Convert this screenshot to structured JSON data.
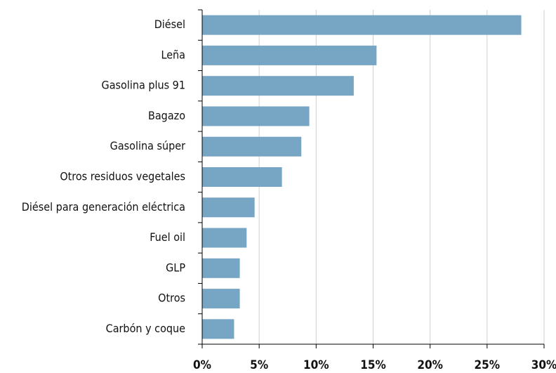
{
  "chart_data": {
    "type": "bar",
    "orientation": "horizontal",
    "categories": [
      "Diésel",
      "Leña",
      "Gasolina plus 91",
      "Bagazo",
      "Gasolina súper",
      "Otros residuos vegetales",
      "Diésel para generación eléctrica",
      "Fuel oil",
      "GLP",
      "Otros",
      "Carbón y coque"
    ],
    "values": [
      28,
      15.3,
      13.3,
      9.4,
      8.7,
      7.0,
      4.6,
      3.9,
      3.3,
      3.3,
      2.8
    ],
    "color": "#77a6c5",
    "xlim": [
      0,
      30
    ],
    "xticks": [
      {
        "value": 0,
        "label": "0%"
      },
      {
        "value": 5,
        "label": "5%"
      },
      {
        "value": 10,
        "label": "10%"
      },
      {
        "value": 15,
        "label": "15%"
      },
      {
        "value": 20,
        "label": "20%"
      },
      {
        "value": 25,
        "label": "25%"
      },
      {
        "value": 30,
        "label": "30%"
      }
    ],
    "grid": true
  }
}
